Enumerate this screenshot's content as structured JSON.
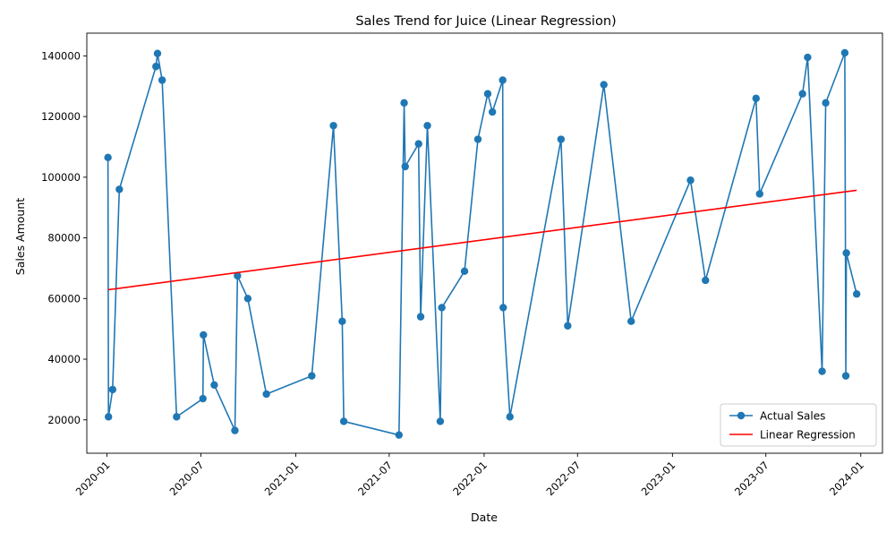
{
  "chart_data": {
    "type": "line",
    "title": "Sales Trend for Juice (Linear Regression)",
    "xlabel": "Date",
    "ylabel": "Sales Amount",
    "x_ticks": [
      "2020-01",
      "2020-07",
      "2021-01",
      "2021-07",
      "2022-01",
      "2022-07",
      "2023-01",
      "2023-07",
      "2024-01"
    ],
    "y_ticks": [
      20000,
      40000,
      60000,
      80000,
      100000,
      120000,
      140000
    ],
    "xlim": [
      "2019-11-23",
      "2024-02-12"
    ],
    "ylim": [
      9000,
      147500
    ],
    "grid": false,
    "legend_position": "bottom-right",
    "colors": {
      "actual": "#1f77b4",
      "regression": "#ff0000"
    },
    "series": [
      {
        "name": "Actual Sales",
        "style": "line-markers",
        "points": [
          [
            "2020-01-03",
            106500
          ],
          [
            "2020-01-04",
            21000
          ],
          [
            "2020-01-12",
            30000
          ],
          [
            "2020-01-25",
            96000
          ],
          [
            "2020-04-05",
            136500
          ],
          [
            "2020-04-08",
            140800
          ],
          [
            "2020-04-17",
            132000
          ],
          [
            "2020-05-15",
            21000
          ],
          [
            "2020-07-05",
            27000
          ],
          [
            "2020-07-06",
            48000
          ],
          [
            "2020-07-27",
            31500
          ],
          [
            "2020-09-05",
            16500
          ],
          [
            "2020-09-10",
            67500
          ],
          [
            "2020-09-30",
            60000
          ],
          [
            "2020-11-05",
            28500
          ],
          [
            "2021-02-01",
            34500
          ],
          [
            "2021-03-15",
            117000
          ],
          [
            "2021-04-01",
            52500
          ],
          [
            "2021-04-04",
            19500
          ],
          [
            "2021-07-20",
            15000
          ],
          [
            "2021-07-30",
            124500
          ],
          [
            "2021-08-01",
            103500
          ],
          [
            "2021-08-27",
            111000
          ],
          [
            "2021-08-31",
            54000
          ],
          [
            "2021-09-13",
            117000
          ],
          [
            "2021-10-08",
            19500
          ],
          [
            "2021-10-11",
            57000
          ],
          [
            "2021-11-24",
            69000
          ],
          [
            "2021-12-20",
            112500
          ],
          [
            "2022-01-08",
            127500
          ],
          [
            "2022-01-17",
            121500
          ],
          [
            "2022-02-06",
            132000
          ],
          [
            "2022-02-07",
            57000
          ],
          [
            "2022-02-20",
            21000
          ],
          [
            "2022-05-30",
            112500
          ],
          [
            "2022-06-12",
            51000
          ],
          [
            "2022-08-21",
            130500
          ],
          [
            "2022-10-13",
            52500
          ],
          [
            "2023-02-05",
            99000
          ],
          [
            "2023-03-06",
            66000
          ],
          [
            "2023-06-12",
            126000
          ],
          [
            "2023-06-19",
            94500
          ],
          [
            "2023-09-10",
            127500
          ],
          [
            "2023-09-20",
            139500
          ],
          [
            "2023-10-18",
            36000
          ],
          [
            "2023-10-25",
            124500
          ],
          [
            "2023-12-01",
            141000
          ],
          [
            "2023-12-03",
            34500
          ],
          [
            "2023-12-04",
            75000
          ],
          [
            "2023-12-24",
            61500
          ]
        ]
      },
      {
        "name": "Linear Regression",
        "style": "line",
        "points": [
          [
            "2020-01-03",
            62900
          ],
          [
            "2023-12-24",
            95700
          ]
        ]
      }
    ]
  }
}
